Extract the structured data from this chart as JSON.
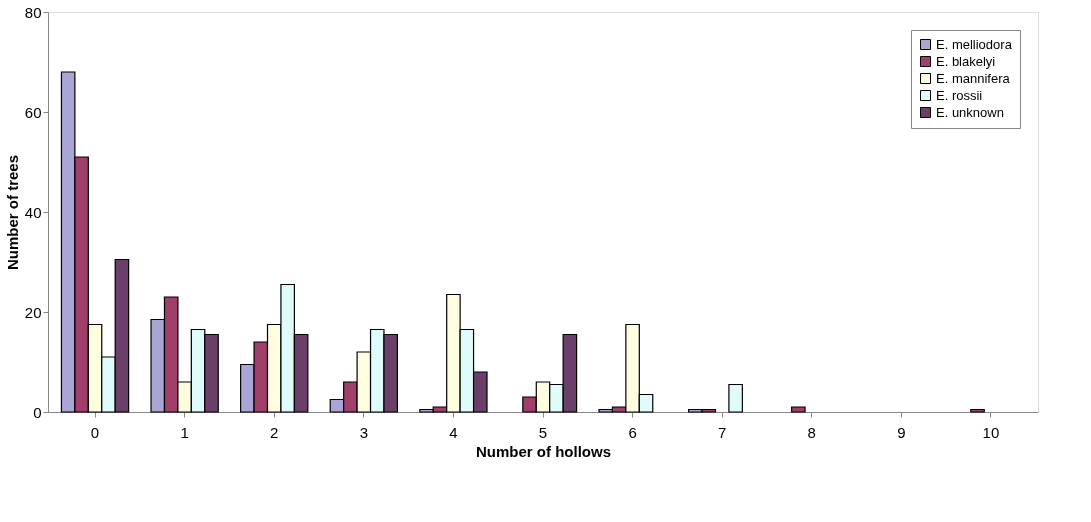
{
  "chart_data": {
    "type": "bar",
    "xlabel": "Number of hollows",
    "ylabel": "Number of trees",
    "categories": [
      "0",
      "1",
      "2",
      "3",
      "4",
      "5",
      "6",
      "7",
      "8",
      "9",
      "10"
    ],
    "series": [
      {
        "name": "E. melliodora",
        "color": "#a9a6d6",
        "values": [
          68,
          18.5,
          9.5,
          2.5,
          0.5,
          0,
          0.5,
          0.5,
          0,
          0,
          0
        ]
      },
      {
        "name": "E. blakelyi",
        "color": "#a0406a",
        "values": [
          51,
          23,
          14,
          6,
          1,
          3,
          1,
          0.5,
          1,
          0,
          0.5
        ]
      },
      {
        "name": "E. mannifera",
        "color": "#fffde0",
        "values": [
          17.5,
          6,
          17.5,
          12,
          23.5,
          6,
          17.5,
          0,
          0,
          0,
          0
        ]
      },
      {
        "name": "E. rossii",
        "color": "#e0fbfb",
        "values": [
          11,
          16.5,
          25.5,
          16.5,
          16.5,
          5.5,
          3.5,
          5.5,
          0,
          0,
          0
        ]
      },
      {
        "name": "E. unknown",
        "color": "#6a3f6a",
        "values": [
          30.5,
          15.5,
          15.5,
          15.5,
          8,
          15.5,
          0,
          0,
          0,
          0,
          0
        ]
      }
    ],
    "ylim": [
      0,
      80
    ],
    "yticks": [
      0,
      20,
      40,
      60,
      80
    ],
    "grid": false,
    "legend": "top right"
  }
}
